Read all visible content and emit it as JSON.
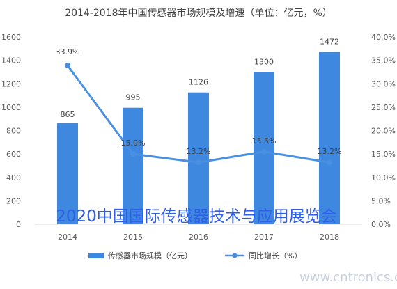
{
  "chart_data": {
    "type": "bar+line",
    "title": "2014-2018年中国传感器市场规模及增速（单位：亿元，%）",
    "categories": [
      "2014",
      "2015",
      "2016",
      "2017",
      "2018"
    ],
    "series": [
      {
        "name": "传感器市场规模（亿元）",
        "type": "bar",
        "axis": "left",
        "values": [
          865,
          995,
          1126,
          1300,
          1472
        ],
        "color": "#3f88e0"
      },
      {
        "name": "同比增长（%）",
        "type": "line",
        "axis": "right",
        "values": [
          33.9,
          15.0,
          13.2,
          15.5,
          13.2
        ],
        "color": "#4a90e2"
      }
    ],
    "bar_labels": [
      "865",
      "995",
      "1126",
      "1300",
      "1472"
    ],
    "line_labels": [
      "33.9%",
      "15.0%",
      "13.2%",
      "15.5%",
      "13.2%"
    ],
    "left_axis": {
      "ylim": [
        0,
        1600
      ],
      "ticks": [
        "0",
        "200",
        "400",
        "600",
        "800",
        "1000",
        "1200",
        "1400",
        "1600"
      ]
    },
    "right_axis": {
      "ylim": [
        0,
        40
      ],
      "ticks": [
        "0.0%",
        "5.0%",
        "10.0%",
        "15.0%",
        "20.0%",
        "25.0%",
        "30.0%",
        "35.0%",
        "40.0%"
      ]
    },
    "legend": {
      "position": "bottom",
      "labels": [
        "传感器市场规模（亿元）",
        "同比增长（%）"
      ]
    },
    "grid": false
  },
  "watermark": {
    "main": "2020中国国际传感器技术与应用展览会",
    "site": "www.cntronics.com"
  }
}
